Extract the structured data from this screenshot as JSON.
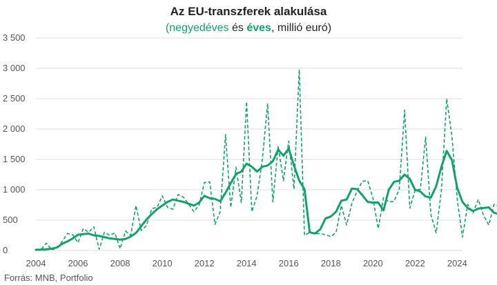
{
  "chart_data": {
    "type": "line",
    "title": "Az EU-transzferek alakulása",
    "subtitle": {
      "open_paren": "(",
      "quarterly": "negyedéves",
      "and": " és ",
      "annual": "éves",
      "unit": ", millió euró)"
    },
    "source": "Forrás: MNB, Portfolio",
    "x_start": 2004,
    "x_step": 0.25,
    "xlim": [
      2004,
      2024.25
    ],
    "ylim": [
      0,
      3500
    ],
    "y_ticks": [
      0,
      500,
      1000,
      1500,
      2000,
      2500,
      3000,
      3500
    ],
    "y_tick_labels": [
      "0",
      "500",
      "1 000",
      "1 500",
      "2 000",
      "2 500",
      "3 000",
      "3 500"
    ],
    "x_ticks": [
      2004,
      2006,
      2008,
      2010,
      2012,
      2014,
      2016,
      2018,
      2020,
      2022,
      2024
    ],
    "x_tick_labels": [
      "2004",
      "2006",
      "2008",
      "2010",
      "2012",
      "2014",
      "2016",
      "2018",
      "2020",
      "2022",
      "2024"
    ],
    "grid": true,
    "color": "#12a06b",
    "series": [
      {
        "name": "negyedéves",
        "style": "dashed",
        "values": [
          20,
          20,
          120,
          10,
          40,
          150,
          280,
          260,
          130,
          360,
          300,
          390,
          20,
          300,
          250,
          290,
          30,
          320,
          250,
          740,
          330,
          410,
          690,
          710,
          900,
          710,
          680,
          920,
          880,
          760,
          640,
          750,
          1120,
          1130,
          430,
          640,
          1910,
          710,
          1370,
          790,
          2450,
          640,
          900,
          1500,
          2420,
          800,
          1720,
          1150,
          1800,
          1010,
          2980,
          250,
          300,
          280,
          280,
          260,
          230,
          300,
          740,
          420,
          780,
          980,
          1140,
          1150,
          860,
          360,
          870,
          800,
          810,
          1010,
          2310,
          700,
          990,
          1010,
          1870,
          590,
          290,
          1000,
          2500,
          1880,
          840,
          220,
          760,
          620,
          840,
          580,
          420,
          760,
          730,
          410,
          290
        ]
      },
      {
        "name": "éves",
        "style": "solid",
        "values": [
          10,
          15,
          20,
          30,
          50,
          110,
          150,
          200,
          260,
          270,
          280,
          250,
          240,
          220,
          200,
          190,
          180,
          190,
          230,
          290,
          400,
          510,
          600,
          680,
          740,
          800,
          840,
          820,
          800,
          770,
          740,
          790,
          900,
          860,
          850,
          810,
          950,
          1110,
          1260,
          1300,
          1430,
          1380,
          1300,
          1380,
          1400,
          1470,
          1660,
          1560,
          1680,
          1400,
          1150,
          1010,
          300,
          280,
          350,
          530,
          560,
          640,
          820,
          840,
          1020,
          1010,
          910,
          800,
          790,
          790,
          660,
          1000,
          1130,
          1150,
          1250,
          1180,
          1000,
          970,
          890,
          870,
          1060,
          1380,
          1640,
          1490,
          1030,
          800,
          700,
          650,
          690,
          700,
          710,
          620,
          600,
          560,
          570
        ]
      }
    ]
  }
}
